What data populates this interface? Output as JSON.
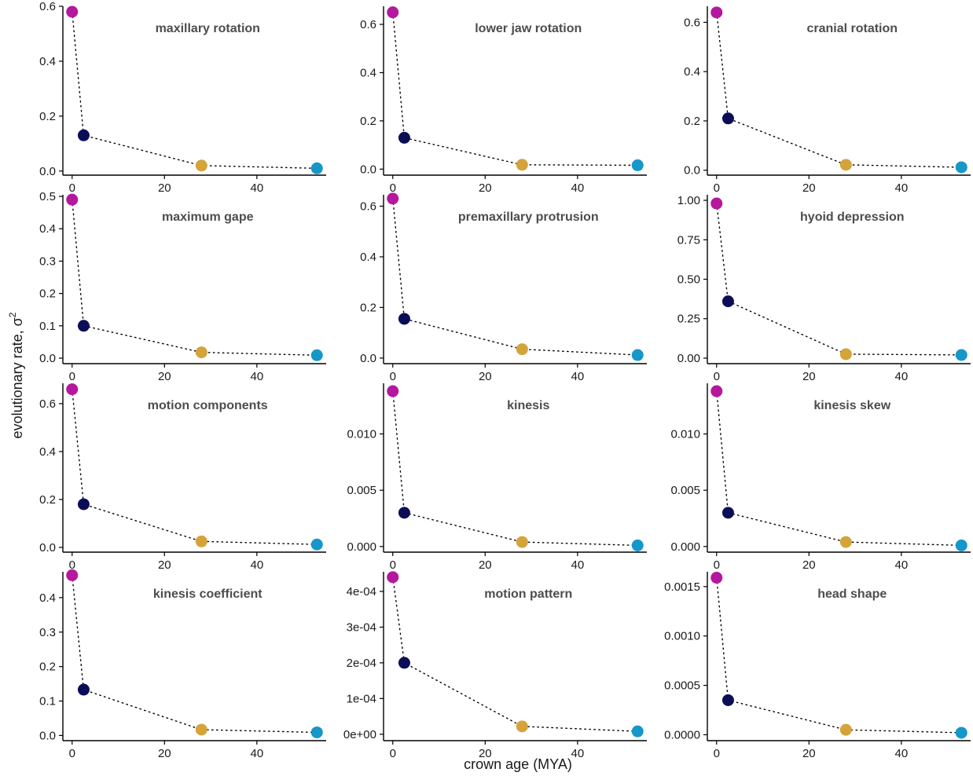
{
  "figure": {
    "ylabel": "evolutionary rate, σ",
    "ylabel_superscript": "2",
    "xlabel": "crown age (MYA)"
  },
  "colors": [
    "#b5179e",
    "#0b0e57",
    "#d4a33a",
    "#1597c9"
  ],
  "chart_data": [
    {
      "type": "scatter",
      "title": "maxillary rotation",
      "x": [
        0,
        2.5,
        28,
        53
      ],
      "y": [
        0.58,
        0.13,
        0.02,
        0.01
      ],
      "xlim": [
        -2,
        55
      ],
      "ylim": [
        -0.015,
        0.6
      ],
      "xticks": [
        0,
        20,
        40
      ],
      "xtick_labels": [
        "0",
        "20",
        "40"
      ],
      "yticks": [
        0.0,
        0.2,
        0.4,
        0.6
      ],
      "ytick_labels": [
        "0.0",
        "0.2",
        "0.4",
        "0.6"
      ]
    },
    {
      "type": "scatter",
      "title": "lower jaw rotation",
      "x": [
        0,
        2.5,
        28,
        53
      ],
      "y": [
        0.65,
        0.13,
        0.018,
        0.016
      ],
      "xlim": [
        -2,
        55
      ],
      "ylim": [
        -0.025,
        0.675
      ],
      "xticks": [
        0,
        20,
        40
      ],
      "xtick_labels": [
        "0",
        "20",
        "40"
      ],
      "yticks": [
        0.0,
        0.2,
        0.4,
        0.6
      ],
      "ytick_labels": [
        "0.0",
        "0.2",
        "0.4",
        "0.6"
      ]
    },
    {
      "type": "scatter",
      "title": "cranial rotation",
      "x": [
        0,
        2.5,
        28,
        53
      ],
      "y": [
        0.64,
        0.21,
        0.022,
        0.012
      ],
      "xlim": [
        -2,
        55
      ],
      "ylim": [
        -0.02,
        0.665
      ],
      "xticks": [
        0,
        20,
        40
      ],
      "xtick_labels": [
        "0",
        "20",
        "40"
      ],
      "yticks": [
        0.0,
        0.2,
        0.4,
        0.6
      ],
      "ytick_labels": [
        "0.0",
        "0.2",
        "0.4",
        "0.6"
      ]
    },
    {
      "type": "scatter",
      "title": "maximum gape",
      "x": [
        0,
        2.5,
        28,
        53
      ],
      "y": [
        0.49,
        0.1,
        0.018,
        0.009
      ],
      "xlim": [
        -2,
        55
      ],
      "ylim": [
        -0.017,
        0.505
      ],
      "xticks": [
        0,
        20,
        40
      ],
      "xtick_labels": [
        "0",
        "20",
        "40"
      ],
      "yticks": [
        0.0,
        0.1,
        0.2,
        0.3,
        0.4,
        0.5
      ],
      "ytick_labels": [
        "0.0",
        "0.1",
        "0.2",
        "0.3",
        "0.4",
        "0.5"
      ]
    },
    {
      "type": "scatter",
      "title": "premaxillary protrusion",
      "x": [
        0,
        2.5,
        28,
        53
      ],
      "y": [
        0.63,
        0.155,
        0.035,
        0.012
      ],
      "xlim": [
        -2,
        55
      ],
      "ylim": [
        -0.022,
        0.645
      ],
      "xticks": [
        0,
        20,
        40
      ],
      "xtick_labels": [
        "0",
        "20",
        "40"
      ],
      "yticks": [
        0.0,
        0.2,
        0.4,
        0.6
      ],
      "ytick_labels": [
        "0.0",
        "0.2",
        "0.4",
        "0.6"
      ]
    },
    {
      "type": "scatter",
      "title": "hyoid depression",
      "x": [
        0,
        2.5,
        28,
        53
      ],
      "y": [
        0.98,
        0.36,
        0.025,
        0.02
      ],
      "xlim": [
        -2,
        55
      ],
      "ylim": [
        -0.035,
        1.035
      ],
      "xticks": [
        0,
        20,
        40
      ],
      "xtick_labels": [
        "0",
        "20",
        "40"
      ],
      "yticks": [
        0.0,
        0.25,
        0.5,
        0.75,
        1.0
      ],
      "ytick_labels": [
        "0.00",
        "0.25",
        "0.50",
        "0.75",
        "1.00"
      ]
    },
    {
      "type": "scatter",
      "title": "motion components",
      "x": [
        0,
        2.5,
        28,
        53
      ],
      "y": [
        0.66,
        0.18,
        0.025,
        0.012
      ],
      "xlim": [
        -2,
        55
      ],
      "ylim": [
        -0.02,
        0.685
      ],
      "xticks": [
        0,
        20,
        40
      ],
      "xtick_labels": [
        "0",
        "20",
        "40"
      ],
      "yticks": [
        0.0,
        0.2,
        0.4,
        0.6
      ],
      "ytick_labels": [
        "0.0",
        "0.2",
        "0.4",
        "0.6"
      ]
    },
    {
      "type": "scatter",
      "title": "kinesis",
      "x": [
        0,
        2.5,
        28,
        53
      ],
      "y": [
        0.0138,
        0.003,
        0.0004,
        0.0001
      ],
      "xlim": [
        -2,
        55
      ],
      "ylim": [
        -0.0005,
        0.0145
      ],
      "xticks": [
        0,
        20,
        40
      ],
      "xtick_labels": [
        "0",
        "20",
        "40"
      ],
      "yticks": [
        0.0,
        0.005,
        0.01
      ],
      "ytick_labels": [
        "0.000",
        "0.005",
        "0.010"
      ]
    },
    {
      "type": "scatter",
      "title": "kinesis skew",
      "x": [
        0,
        2.5,
        28,
        53
      ],
      "y": [
        0.0138,
        0.003,
        0.0004,
        0.0001
      ],
      "xlim": [
        -2,
        55
      ],
      "ylim": [
        -0.0005,
        0.0145
      ],
      "xticks": [
        0,
        20,
        40
      ],
      "xtick_labels": [
        "0",
        "20",
        "40"
      ],
      "yticks": [
        0.0,
        0.005,
        0.01
      ],
      "ytick_labels": [
        "0.000",
        "0.005",
        "0.010"
      ]
    },
    {
      "type": "scatter",
      "title": "kinesis coefficient",
      "x": [
        0,
        2.5,
        28,
        53
      ],
      "y": [
        0.465,
        0.133,
        0.017,
        0.009
      ],
      "xlim": [
        -2,
        55
      ],
      "ylim": [
        -0.015,
        0.475
      ],
      "xticks": [
        0,
        20,
        40
      ],
      "xtick_labels": [
        "0",
        "20",
        "40"
      ],
      "yticks": [
        0.0,
        0.1,
        0.2,
        0.3,
        0.4
      ],
      "ytick_labels": [
        "0.0",
        "0.1",
        "0.2",
        "0.3",
        "0.4"
      ]
    },
    {
      "type": "scatter",
      "title": "motion pattern",
      "x": [
        0,
        2.5,
        28,
        53
      ],
      "y": [
        0.00044,
        0.0002,
        2.2e-05,
        8e-06
      ],
      "xlim": [
        -2,
        55
      ],
      "ylim": [
        -1.8e-05,
        0.000455
      ],
      "xticks": [
        0,
        20,
        40
      ],
      "xtick_labels": [
        "0",
        "20",
        "40"
      ],
      "yticks": [
        0.0,
        0.0001,
        0.0002,
        0.0003,
        0.0004
      ],
      "ytick_labels": [
        "0e+00",
        "1e-04",
        "2e-04",
        "3e-04",
        "4e-04"
      ]
    },
    {
      "type": "scatter",
      "title": "head shape",
      "x": [
        0,
        2.5,
        28,
        53
      ],
      "y": [
        0.00159,
        0.00035,
        5e-05,
        2e-05
      ],
      "xlim": [
        -2,
        55
      ],
      "ylim": [
        -6e-05,
        0.00165
      ],
      "xticks": [
        0,
        20,
        40
      ],
      "xtick_labels": [
        "0",
        "20",
        "40"
      ],
      "yticks": [
        0.0,
        0.0005,
        0.001,
        0.0015
      ],
      "ytick_labels": [
        "0.0000",
        "0.0005",
        "0.0010",
        "0.0015"
      ]
    }
  ]
}
